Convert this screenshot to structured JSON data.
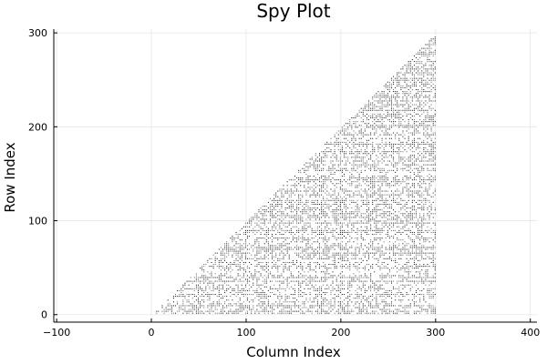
{
  "chart_data": {
    "type": "scatter",
    "subtype": "spy",
    "title": "Spy Plot",
    "xlabel": "Column Index",
    "ylabel": "Row Index",
    "xlim": [
      -103,
      407
    ],
    "ylim": [
      -8,
      304
    ],
    "xticks": [
      -100,
      0,
      100,
      200,
      300,
      400
    ],
    "yticks": [
      0,
      100,
      200,
      300
    ],
    "xtick_labels": [
      "−100",
      "0",
      "100",
      "200",
      "300",
      "400"
    ],
    "ytick_labels": [
      "0",
      "100",
      "200",
      "300"
    ],
    "grid": true,
    "legend": "none",
    "matrix": {
      "rows": 300,
      "cols": 300,
      "structure": "nonzeros where column >= row (upper triangular band, rows 1–295, columns 5–300)",
      "row_range": [
        1,
        295
      ],
      "col_range": [
        5,
        300
      ]
    },
    "colors": {
      "marker": "#1a1a1a",
      "grid": "#e6e6e6",
      "axis": "#000000"
    }
  }
}
